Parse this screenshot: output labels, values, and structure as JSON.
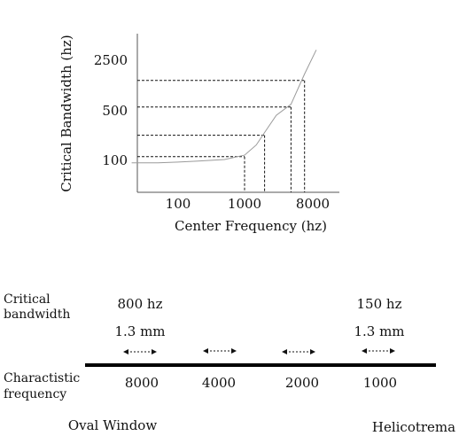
{
  "colors": {
    "ink": "#111111",
    "curve": "#9a9a9a",
    "axis": "#555555"
  },
  "chart_data": {
    "type": "line",
    "xscale": "log",
    "yscale": "log",
    "xlabel": "Center Frequency (hz)",
    "ylabel": "Critical Bandwidth (hz)",
    "xticks": [
      "100",
      "1000",
      "8000"
    ],
    "yticks": [
      "100",
      "500",
      "2500"
    ],
    "series": [
      {
        "x": [
          20,
          50,
          100,
          200,
          500,
          1000,
          1500,
          2000,
          3000,
          5000,
          8000,
          12000
        ],
        "y": [
          90,
          90,
          92,
          95,
          100,
          115,
          160,
          240,
          420,
          600,
          1600,
          3500
        ]
      }
    ],
    "reference_points": [
      {
        "x": 1000,
        "y": 110
      },
      {
        "x": 2000,
        "y": 220
      },
      {
        "x": 5000,
        "y": 550
      },
      {
        "x": 8000,
        "y": 1300
      }
    ]
  },
  "lower": {
    "critical_label_lines": [
      "Critical",
      "bandwidth"
    ],
    "characteristic_label_lines": [
      "Charactistic",
      "frequency"
    ],
    "left_bandwidth": "800 hz",
    "left_distance": "1.3 mm",
    "right_bandwidth": "150 hz",
    "right_distance": "1.3 mm",
    "frequencies": [
      "8000",
      "4000",
      "2000",
      "1000"
    ],
    "left_end_label": "Oval Window",
    "right_end_label": "Helicotrema"
  }
}
